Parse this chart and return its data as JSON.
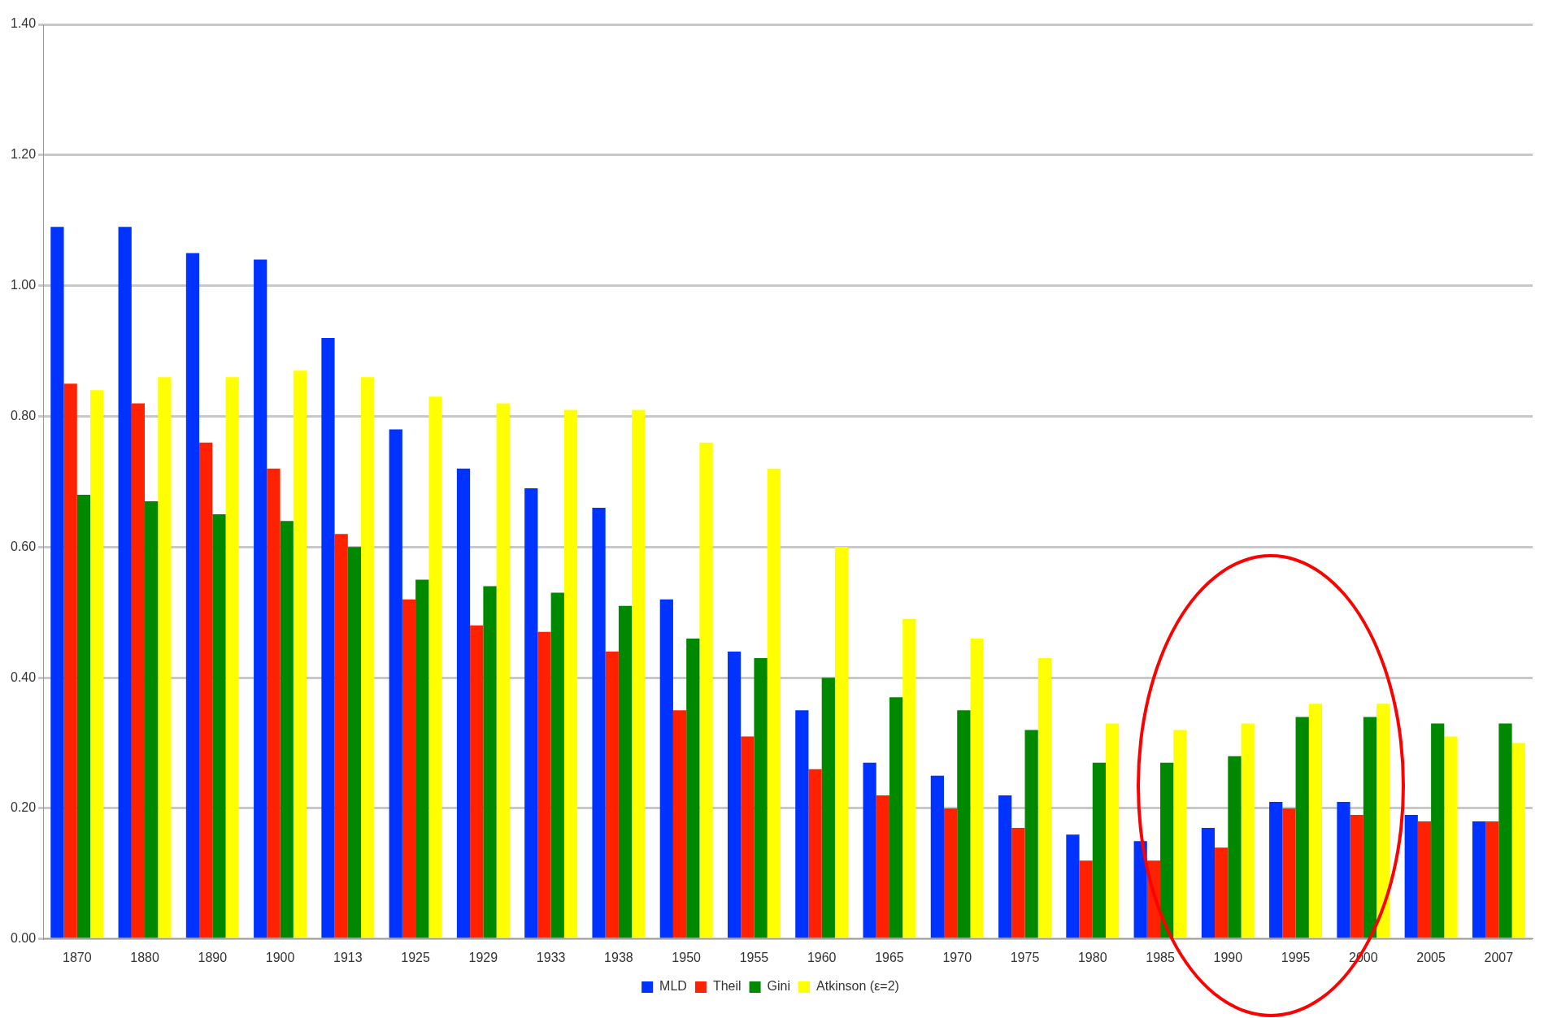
{
  "chart_data": {
    "type": "bar",
    "categories": [
      "1870",
      "1880",
      "1890",
      "1900",
      "1913",
      "1925",
      "1929",
      "1933",
      "1938",
      "1950",
      "1955",
      "1960",
      "1965",
      "1970",
      "1975",
      "1980",
      "1985",
      "1990",
      "1995",
      "2000",
      "2005",
      "2007"
    ],
    "series": [
      {
        "name": "MLD",
        "color": "#0033ff",
        "values": [
          1.09,
          1.09,
          1.05,
          1.04,
          0.92,
          0.78,
          0.72,
          0.69,
          0.66,
          0.52,
          0.44,
          0.35,
          0.27,
          0.25,
          0.22,
          0.16,
          0.15,
          0.17,
          0.21,
          0.21,
          0.19,
          0.18
        ]
      },
      {
        "name": "Theil",
        "color": "#ff2200",
        "values": [
          0.85,
          0.82,
          0.76,
          0.72,
          0.62,
          0.52,
          0.48,
          0.47,
          0.44,
          0.35,
          0.31,
          0.26,
          0.22,
          0.2,
          0.17,
          0.12,
          0.12,
          0.14,
          0.2,
          0.19,
          0.18,
          0.18
        ]
      },
      {
        "name": "Gini",
        "color": "#008800",
        "values": [
          0.68,
          0.67,
          0.65,
          0.64,
          0.6,
          0.55,
          0.54,
          0.53,
          0.51,
          0.46,
          0.43,
          0.4,
          0.37,
          0.35,
          0.32,
          0.27,
          0.27,
          0.28,
          0.34,
          0.34,
          0.33,
          0.33
        ]
      },
      {
        "name": "Atkinson (ε=2)",
        "color": "#ffff00",
        "values": [
          0.84,
          0.86,
          0.86,
          0.87,
          0.86,
          0.83,
          0.82,
          0.81,
          0.81,
          0.76,
          0.72,
          0.6,
          0.49,
          0.46,
          0.43,
          0.33,
          0.32,
          0.33,
          0.36,
          0.36,
          0.31,
          0.3
        ]
      }
    ],
    "ylim": [
      0,
      1.4
    ],
    "yticks": [
      {
        "value": 0,
        "label": "0.00"
      },
      {
        "value": 0.2,
        "label": "0.20"
      },
      {
        "value": 0.4,
        "label": "0.40"
      },
      {
        "value": 0.6,
        "label": "0.60"
      },
      {
        "value": 0.8,
        "label": "0.80"
      },
      {
        "value": 1,
        "label": "1.00"
      },
      {
        "value": 1.2,
        "label": "1.20"
      },
      {
        "value": 1.4,
        "label": "1.40"
      }
    ],
    "grid": "y",
    "legend": "bottom"
  }
}
